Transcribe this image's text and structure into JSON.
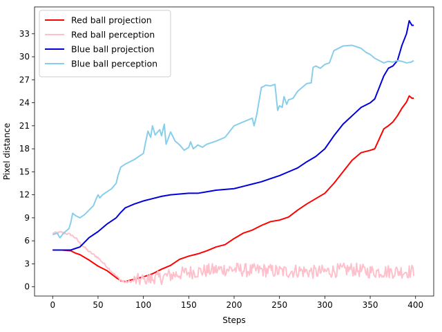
{
  "chart_data": {
    "type": "line",
    "title": "",
    "xlabel": "Steps",
    "ylabel": "Pixel distance",
    "xlim": [
      -20,
      420
    ],
    "ylim": [
      -1.2,
      36.5
    ],
    "x_ticks": [
      0,
      50,
      100,
      150,
      200,
      250,
      300,
      350,
      400
    ],
    "y_ticks": [
      0,
      3,
      6,
      9,
      12,
      15,
      18,
      21,
      24,
      27,
      30,
      33
    ],
    "grid": false,
    "legend_position": "top-left",
    "series": [
      {
        "name": "Red ball projection",
        "color": "#ff0000",
        "style": "solid",
        "x": [
          0,
          10,
          20,
          25,
          30,
          40,
          50,
          60,
          70,
          75,
          80,
          90,
          100,
          110,
          120,
          130,
          140,
          150,
          160,
          170,
          180,
          190,
          200,
          210,
          220,
          230,
          240,
          250,
          260,
          270,
          280,
          290,
          300,
          310,
          320,
          330,
          340,
          350,
          355,
          360,
          365,
          370,
          375,
          380,
          385,
          390,
          393,
          396,
          398
        ],
        "y": [
          4.8,
          4.8,
          4.7,
          4.4,
          4.2,
          3.5,
          2.7,
          2.1,
          1.2,
          0.8,
          0.7,
          1.0,
          1.3,
          1.7,
          2.3,
          2.8,
          3.6,
          4.0,
          4.3,
          4.7,
          5.2,
          5.5,
          6.3,
          7.0,
          7.4,
          8.0,
          8.5,
          8.7,
          9.1,
          10.0,
          10.8,
          11.5,
          12.2,
          13.5,
          15.0,
          16.5,
          17.5,
          17.8,
          18.0,
          19.3,
          20.6,
          21.0,
          21.5,
          22.3,
          23.3,
          24.1,
          24.9,
          24.6,
          24.6
        ]
      },
      {
        "name": "Red ball perception",
        "color": "#ffc0cb",
        "style": "noisy",
        "x": [
          0,
          10,
          20,
          25,
          30,
          40,
          50,
          60,
          70,
          75,
          80,
          90,
          100,
          110,
          120,
          125,
          130,
          140,
          150,
          160,
          170,
          180,
          190,
          200,
          210,
          220,
          230,
          240,
          250,
          260,
          270,
          280,
          290,
          300,
          310,
          320,
          330,
          340,
          350,
          360,
          370,
          380,
          390,
          398
        ],
        "y": [
          7.0,
          7.1,
          6.8,
          6.4,
          5.7,
          4.6,
          3.8,
          2.6,
          1.4,
          0.9,
          0.6,
          0.8,
          0.9,
          1.0,
          1.2,
          1.4,
          1.5,
          1.7,
          1.9,
          2.0,
          2.1,
          2.2,
          2.3,
          2.3,
          2.2,
          2.1,
          2.2,
          2.1,
          2.0,
          2.0,
          2.1,
          2.0,
          1.9,
          2.0,
          2.1,
          2.2,
          2.3,
          2.1,
          2.0,
          2.0,
          2.0,
          2.0,
          2.0,
          2.0
        ],
        "noise_amplitude": 0.9
      },
      {
        "name": "Blue ball projection",
        "color": "#0000dd",
        "style": "solid",
        "x": [
          0,
          10,
          20,
          25,
          30,
          40,
          50,
          60,
          70,
          75,
          80,
          90,
          100,
          110,
          120,
          130,
          140,
          150,
          160,
          170,
          180,
          190,
          200,
          210,
          220,
          230,
          240,
          250,
          260,
          270,
          280,
          290,
          300,
          310,
          320,
          330,
          340,
          350,
          355,
          360,
          365,
          370,
          375,
          380,
          385,
          390,
          393,
          396,
          398
        ],
        "y": [
          4.8,
          4.8,
          4.8,
          5.0,
          5.2,
          6.4,
          7.2,
          8.2,
          9.0,
          9.7,
          10.3,
          10.8,
          11.2,
          11.5,
          11.8,
          12.0,
          12.1,
          12.2,
          12.2,
          12.4,
          12.6,
          12.7,
          12.8,
          13.1,
          13.4,
          13.7,
          14.1,
          14.5,
          15.0,
          15.5,
          16.3,
          17.0,
          18.0,
          19.7,
          21.2,
          22.3,
          23.4,
          24.0,
          24.5,
          26.0,
          27.5,
          28.5,
          28.8,
          29.5,
          31.5,
          33.0,
          34.7,
          34.1,
          34.1
        ]
      },
      {
        "name": "Blue ball perception",
        "color": "#87ceeb",
        "style": "solid",
        "x": [
          0,
          5,
          8,
          12,
          15,
          18,
          20,
          22,
          25,
          30,
          35,
          40,
          45,
          48,
          50,
          52,
          55,
          60,
          65,
          70,
          72,
          75,
          80,
          90,
          100,
          102,
          105,
          108,
          110,
          113,
          115,
          118,
          120,
          123,
          125,
          130,
          135,
          140,
          145,
          150,
          152,
          155,
          160,
          165,
          170,
          180,
          190,
          200,
          210,
          220,
          222,
          225,
          230,
          232,
          235,
          240,
          245,
          248,
          250,
          253,
          255,
          258,
          260,
          263,
          265,
          270,
          275,
          280,
          285,
          287,
          290,
          295,
          300,
          305,
          310,
          320,
          330,
          340,
          345,
          350,
          355,
          360,
          365,
          370,
          375,
          380,
          385,
          390,
          395,
          398
        ],
        "y": [
          6.8,
          7.0,
          6.4,
          7.0,
          7.3,
          7.6,
          8.4,
          9.6,
          9.3,
          9.0,
          9.4,
          10.0,
          10.6,
          11.5,
          12.0,
          11.6,
          12.0,
          12.4,
          12.8,
          13.5,
          14.5,
          15.6,
          16.0,
          16.6,
          17.4,
          18.6,
          20.3,
          19.5,
          21.0,
          19.8,
          20.1,
          20.5,
          19.7,
          21.2,
          18.6,
          20.2,
          19.0,
          18.5,
          17.8,
          18.2,
          18.9,
          18.0,
          18.5,
          18.2,
          18.6,
          19.0,
          19.5,
          21.0,
          21.5,
          22.0,
          21.0,
          22.5,
          26.0,
          26.1,
          26.3,
          26.2,
          26.4,
          23.0,
          23.6,
          23.4,
          24.8,
          23.8,
          24.4,
          24.5,
          24.6,
          25.5,
          26.0,
          26.5,
          26.6,
          28.6,
          28.8,
          28.5,
          29.0,
          29.2,
          30.8,
          31.4,
          31.5,
          31.1,
          30.6,
          30.3,
          29.8,
          29.5,
          29.2,
          29.4,
          29.3,
          29.5,
          29.4,
          29.2,
          29.3,
          29.5
        ]
      }
    ]
  }
}
